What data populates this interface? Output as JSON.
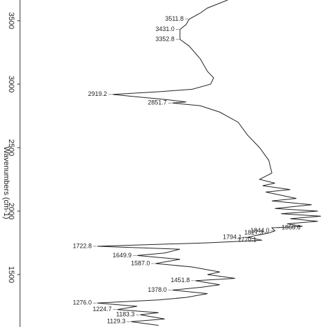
{
  "chart_data": {
    "type": "line",
    "xlabel": "Wavenumbers (cm-1)",
    "xlim": [
      3663,
      1087
    ],
    "xticks": [
      3500,
      3000,
      2500,
      2000,
      1500
    ],
    "ylim": [
      0,
      100
    ],
    "color": "#222222",
    "x": [
      3663,
      3600,
      3560,
      3511.8,
      3470,
      3431.0,
      3352.8,
      3300,
      3200,
      3100,
      3050,
      3000,
      2960,
      2940,
      2919.2,
      2900,
      2880,
      2860,
      2851.7,
      2830,
      2780,
      2700,
      2600,
      2500,
      2400,
      2300,
      2250,
      2220,
      2200,
      2170,
      2150,
      2100,
      2080,
      2050,
      2020,
      2000,
      1980,
      1960,
      1940,
      1920,
      1900,
      1880,
      1868.6,
      1844.0,
      1827.3,
      1794.1,
      1770.1,
      1750,
      1722.8,
      1700,
      1670,
      1649.9,
      1620,
      1587.0,
      1560,
      1520,
      1500,
      1470,
      1451.8,
      1420,
      1400,
      1378.0,
      1350,
      1320,
      1300,
      1276.0,
      1250,
      1224.7,
      1200,
      1183.3,
      1150,
      1129.3,
      1100
    ],
    "values": [
      67.6,
      61,
      58.6,
      55,
      54,
      52,
      52,
      55,
      58.6,
      61,
      63,
      62,
      56,
      45,
      30,
      38,
      47,
      54,
      49.5,
      58.6,
      65,
      71,
      74,
      78,
      81,
      82,
      78,
      83,
      79,
      88,
      80,
      90,
      82,
      95,
      83,
      97,
      85,
      98,
      88,
      97,
      87,
      92,
      82,
      83,
      81,
      74,
      78.8,
      61,
      25,
      52,
      47,
      38,
      52,
      44,
      56,
      65,
      61,
      70,
      57,
      65,
      59,
      49.5,
      61,
      54,
      45,
      25,
      38,
      31.5,
      45,
      39,
      47,
      36,
      45
    ],
    "peak_labels": [
      {
        "value": 3511.8,
        "label": "3511.8"
      },
      {
        "value": 3431.0,
        "label": "3431.0"
      },
      {
        "value": 3352.8,
        "label": "3352.8"
      },
      {
        "value": 2919.2,
        "label": "2919.2"
      },
      {
        "value": 2851.7,
        "label": "2851.7"
      },
      {
        "value": 1868.6,
        "label": "1868.6"
      },
      {
        "value": 1844.0,
        "label": "1844.0"
      },
      {
        "value": 1827.3,
        "label": "1827.3"
      },
      {
        "value": 1794.1,
        "label": "1794.1"
      },
      {
        "value": 1770.1,
        "label": "1770.1"
      },
      {
        "value": 1722.8,
        "label": "1722.8"
      },
      {
        "value": 1649.9,
        "label": "1649.9"
      },
      {
        "value": 1587.0,
        "label": "1587.0"
      },
      {
        "value": 1451.8,
        "label": "1451.8"
      },
      {
        "value": 1378.0,
        "label": "1378.0"
      },
      {
        "value": 1276.0,
        "label": "1276.0"
      },
      {
        "value": 1224.7,
        "label": "1224.7"
      },
      {
        "value": 1183.3,
        "label": "1183.3"
      },
      {
        "value": 1129.3,
        "label": "1129.3"
      }
    ]
  }
}
